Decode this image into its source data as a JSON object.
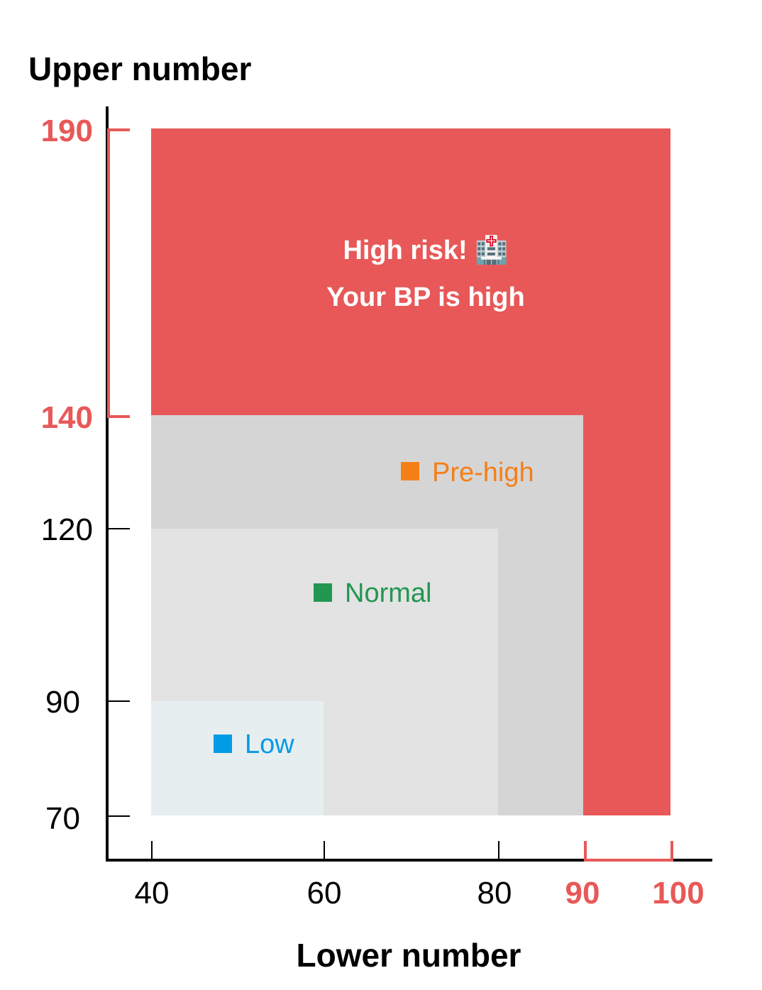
{
  "chart_data": {
    "type": "area",
    "title": "",
    "xlabel": "Lower number",
    "ylabel": "Upper number",
    "x_ticks": [
      "40",
      "60",
      "80",
      "90",
      "100"
    ],
    "y_ticks": [
      "70",
      "90",
      "120",
      "140",
      "190"
    ],
    "highlight_x_ticks": [
      "90",
      "100"
    ],
    "highlight_y_ticks": [
      "140",
      "190"
    ],
    "xlim": [
      40,
      100
    ],
    "ylim": [
      70,
      190
    ],
    "zones": [
      {
        "name": "High risk",
        "x_range": [
          40,
          100
        ],
        "y_range": [
          70,
          190
        ],
        "color": "#e85858",
        "labels": [
          "High risk! 🏥",
          "Your BP is high"
        ]
      },
      {
        "name": "Pre-high",
        "x_range": [
          40,
          90
        ],
        "y_range": [
          70,
          140
        ],
        "color": "#d6d5d6",
        "label": "Pre-high",
        "marker_color": "#f57f17",
        "text_color": "#f57f17"
      },
      {
        "name": "Normal",
        "x_range": [
          40,
          80
        ],
        "y_range": [
          70,
          120
        ],
        "color": "#e3e3e3",
        "label": "Normal",
        "marker_color": "#229750",
        "text_color": "#229750"
      },
      {
        "name": "Low",
        "x_range": [
          40,
          60
        ],
        "y_range": [
          70,
          90
        ],
        "color": "#e7eef0",
        "label": "Low",
        "marker_color": "#039be5",
        "text_color": "#039be5"
      }
    ],
    "accent_color": "#e85858"
  }
}
